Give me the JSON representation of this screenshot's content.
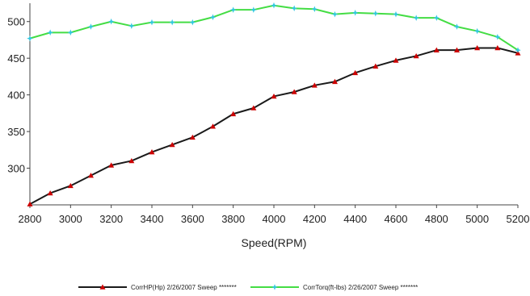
{
  "chart_data": {
    "type": "line",
    "title": "",
    "xlabel": "Speed(RPM)",
    "ylabel": "",
    "xlim": [
      2800,
      5200
    ],
    "ylim": [
      250,
      525
    ],
    "xticks": [
      "2800",
      "3000",
      "3200",
      "3400",
      "3600",
      "3800",
      "4000",
      "4200",
      "4400",
      "4600",
      "4800",
      "5000",
      "5200"
    ],
    "yticks": [
      "300",
      "350",
      "400",
      "450",
      "500"
    ],
    "x": [
      2800,
      2900,
      3000,
      3100,
      3200,
      3300,
      3400,
      3500,
      3600,
      3700,
      3800,
      3900,
      4000,
      4100,
      4200,
      4300,
      4400,
      4500,
      4600,
      4700,
      4800,
      4900,
      5000,
      5100,
      5200
    ],
    "grid": false,
    "legend_position": "bottom",
    "series": [
      {
        "name": "CorrHP(Hp) 2/26/2007 Sweep *******",
        "color": "#1a1a1a",
        "marker": "triangle",
        "marker_color": "#cc0000",
        "values": [
          251,
          266,
          276,
          290,
          304,
          310,
          322,
          332,
          342,
          357,
          374,
          382,
          398,
          404,
          413,
          418,
          430,
          439,
          447,
          453,
          461,
          461,
          464,
          464,
          457
        ]
      },
      {
        "name": "CorrTorq(ft-lbs) 2/26/2007 Sweep *******",
        "color": "#44dd44",
        "marker": "star",
        "marker_color": "#33c8e0",
        "values": [
          477,
          485,
          485,
          493,
          500,
          494,
          499,
          499,
          499,
          506,
          516,
          516,
          522,
          518,
          517,
          510,
          512,
          511,
          510,
          505,
          505,
          493,
          487,
          479,
          461
        ]
      }
    ]
  }
}
